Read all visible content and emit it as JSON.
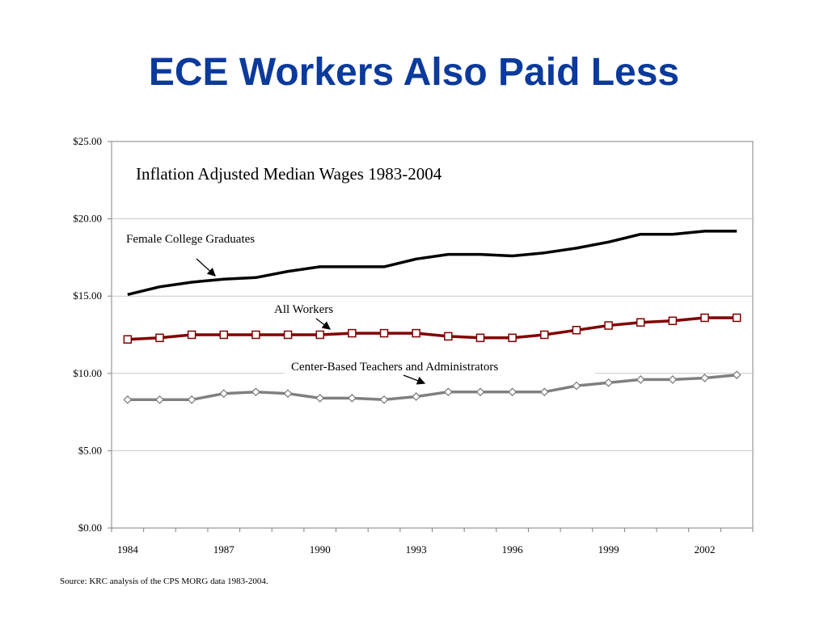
{
  "slide": {
    "title": "ECE Workers Also Paid Less",
    "source": "Source: KRC analysis of the CPS MORG data 1983-2004."
  },
  "colors": {
    "title": "#0b3a9c",
    "female": "#000000",
    "all_workers": "#800000",
    "ece": "#808080"
  },
  "chart_data": {
    "type": "line",
    "title": "Inflation Adjusted Median Wages 1983-2004",
    "xlabel": "",
    "ylabel": "",
    "x": [
      1984,
      1985,
      1986,
      1987,
      1988,
      1989,
      1990,
      1991,
      1992,
      1993,
      1994,
      1995,
      1996,
      1997,
      1998,
      1999,
      2000,
      2001,
      2002,
      2003
    ],
    "x_ticks": [
      "1984",
      "1987",
      "1990",
      "1993",
      "1996",
      "1999",
      "2002"
    ],
    "x_tick_values": [
      1984,
      1987,
      1990,
      1993,
      1996,
      1999,
      2002
    ],
    "y_ticks": [
      "$0.00",
      "$5.00",
      "$10.00",
      "$15.00",
      "$20.00",
      "$25.00"
    ],
    "y_tick_values": [
      0,
      5,
      10,
      15,
      20,
      25
    ],
    "ylim": [
      0,
      25
    ],
    "grid": "horizontal",
    "series": [
      {
        "name": "Female College Graduates",
        "marker": "none",
        "values": [
          15.1,
          15.6,
          15.9,
          16.1,
          16.2,
          16.6,
          16.9,
          16.9,
          16.9,
          17.4,
          17.7,
          17.7,
          17.6,
          17.8,
          18.1,
          18.5,
          19.0,
          19.0,
          19.2,
          19.2
        ]
      },
      {
        "name": "All Workers",
        "marker": "square",
        "values": [
          12.2,
          12.3,
          12.5,
          12.5,
          12.5,
          12.5,
          12.5,
          12.6,
          12.6,
          12.6,
          12.4,
          12.3,
          12.3,
          12.5,
          12.8,
          13.1,
          13.3,
          13.4,
          13.6,
          13.6
        ]
      },
      {
        "name": "Center-Based Teachers and Administrators",
        "marker": "diamond",
        "values": [
          8.3,
          8.3,
          8.3,
          8.7,
          8.8,
          8.7,
          8.4,
          8.4,
          8.3,
          8.5,
          8.8,
          8.8,
          8.8,
          8.8,
          9.2,
          9.4,
          9.6,
          9.6,
          9.7,
          9.9
        ]
      }
    ],
    "annotations": [
      "Female College Graduates",
      "All Workers",
      "Center-Based Teachers and Administrators"
    ]
  }
}
